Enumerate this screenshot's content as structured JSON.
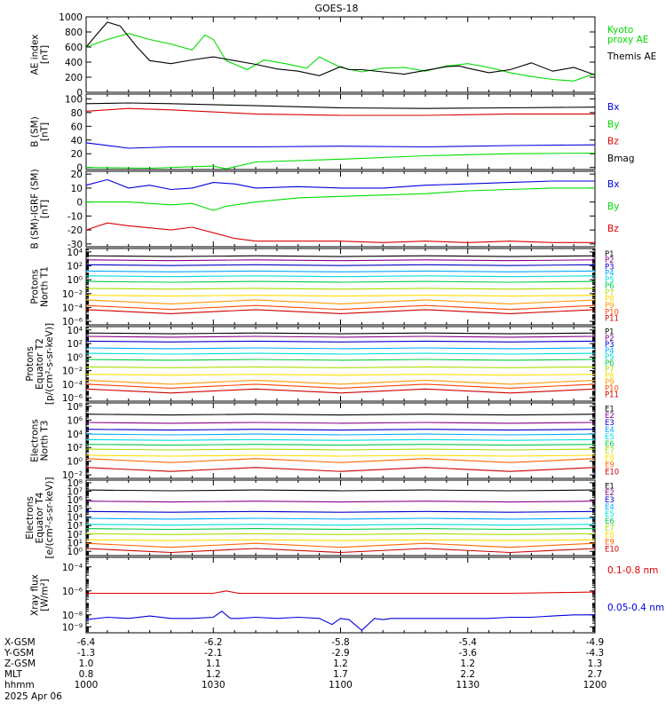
{
  "title": "GOES-18",
  "colors": {
    "black": "#000000",
    "green": "#00dd00",
    "blue": "#0000dd",
    "red": "#dd0000",
    "P1": "#000000",
    "P2": "#880088",
    "P3": "#0000cc",
    "P4": "#00aaff",
    "P5": "#00dddd",
    "P6": "#00cc44",
    "P7": "#aadd00",
    "P8": "#ffdd00",
    "P9": "#ff9900",
    "P10": "#ff4400",
    "P11": "#cc0000"
  },
  "chart_data": [
    {
      "type": "line",
      "id": "ae",
      "ylabel": [
        "AE index",
        "[nT]"
      ],
      "ylim": [
        0,
        1000
      ],
      "yticks": [
        {
          "v": 0,
          "t": "0"
        },
        {
          "v": 200,
          "t": "200"
        },
        {
          "v": 400,
          "t": "400"
        },
        {
          "v": 600,
          "t": "600"
        },
        {
          "v": 800,
          "t": "800"
        },
        {
          "v": 1000,
          "t": "1000"
        }
      ],
      "series": [
        {
          "name": "Kyoto proxy AE",
          "color": "green",
          "x": [
            0,
            5,
            10,
            15,
            20,
            25,
            28,
            30,
            33,
            38,
            42,
            47,
            52,
            55,
            60,
            65,
            70,
            75,
            80,
            85,
            90,
            95,
            100,
            105,
            110,
            115,
            120
          ],
          "y": [
            600,
            700,
            780,
            700,
            640,
            560,
            760,
            700,
            420,
            300,
            430,
            380,
            320,
            470,
            330,
            270,
            320,
            330,
            280,
            350,
            380,
            330,
            260,
            210,
            170,
            150,
            250
          ]
        },
        {
          "name": "Themis AE",
          "color": "black",
          "x": [
            0,
            3,
            5,
            8,
            12,
            15,
            20,
            25,
            30,
            35,
            40,
            45,
            50,
            55,
            60,
            62,
            65,
            70,
            75,
            80,
            85,
            88,
            90,
            95,
            100,
            105,
            110,
            115,
            118,
            120
          ],
          "y": [
            600,
            800,
            930,
            880,
            600,
            420,
            380,
            430,
            470,
            420,
            370,
            310,
            280,
            220,
            340,
            300,
            300,
            270,
            240,
            290,
            340,
            350,
            320,
            260,
            300,
            390,
            280,
            330,
            270,
            230
          ]
        }
      ],
      "legend": [
        {
          "lines": [
            "Kyoto",
            "proxy AE"
          ],
          "color": "green"
        },
        {
          "lines": [
            "Themis AE"
          ],
          "color": "black"
        }
      ]
    },
    {
      "type": "line",
      "id": "bsm",
      "ylabel": [
        "B (SM)",
        "[nT]"
      ],
      "ylim": [
        -3,
        107
      ],
      "yticks": [
        {
          "v": 0,
          "t": "0"
        },
        {
          "v": 20,
          "t": "20"
        },
        {
          "v": 40,
          "t": "40"
        },
        {
          "v": 60,
          "t": "60"
        },
        {
          "v": 80,
          "t": "80"
        },
        {
          "v": 100,
          "t": "100"
        }
      ],
      "series": [
        {
          "name": "Bmag",
          "color": "black",
          "x": [
            0,
            10,
            20,
            40,
            60,
            80,
            100,
            120
          ],
          "y": [
            93,
            94,
            93,
            90,
            87,
            86,
            87,
            88
          ]
        },
        {
          "name": "Bz",
          "color": "red",
          "x": [
            0,
            10,
            20,
            40,
            60,
            80,
            100,
            120
          ],
          "y": [
            82,
            86,
            84,
            78,
            76,
            76,
            78,
            78
          ]
        },
        {
          "name": "Bx",
          "color": "blue",
          "x": [
            0,
            10,
            20,
            40,
            60,
            80,
            100,
            120
          ],
          "y": [
            36,
            28,
            30,
            30,
            31,
            30,
            32,
            33
          ]
        },
        {
          "name": "By",
          "color": "green",
          "x": [
            0,
            15,
            30,
            33,
            40,
            60,
            80,
            100,
            120
          ],
          "y": [
            0,
            -1,
            2,
            -2,
            8,
            12,
            17,
            20,
            21
          ]
        }
      ],
      "legend": [
        {
          "lines": [
            "Bx"
          ],
          "color": "blue"
        },
        {
          "lines": [
            "By"
          ],
          "color": "green"
        },
        {
          "lines": [
            "Bz"
          ],
          "color": "red"
        },
        {
          "lines": [
            "Bmag"
          ],
          "color": "black"
        }
      ]
    },
    {
      "type": "line",
      "id": "bigrf",
      "ylabel": [
        "B (SM)-IGRF (SM)",
        "[nT]"
      ],
      "ylim": [
        -32,
        22
      ],
      "yticks": [
        {
          "v": -30,
          "t": "-30"
        },
        {
          "v": -20,
          "t": "-20"
        },
        {
          "v": -10,
          "t": "-10"
        },
        {
          "v": 0,
          "t": "0"
        },
        {
          "v": 10,
          "t": "10"
        },
        {
          "v": 20,
          "t": "20"
        }
      ],
      "series": [
        {
          "name": "Bx",
          "color": "blue",
          "x": [
            0,
            5,
            10,
            15,
            20,
            25,
            30,
            35,
            40,
            50,
            60,
            70,
            80,
            90,
            100,
            110,
            120
          ],
          "y": [
            12,
            16,
            10,
            12,
            9,
            10,
            14,
            13,
            10,
            11,
            10,
            10,
            12,
            13,
            14,
            15,
            15
          ]
        },
        {
          "name": "By",
          "color": "green",
          "x": [
            0,
            10,
            20,
            25,
            30,
            33,
            40,
            50,
            60,
            70,
            80,
            90,
            100,
            110,
            120
          ],
          "y": [
            0,
            0,
            -2,
            -1,
            -6,
            -3,
            0,
            3,
            4,
            5,
            6,
            8,
            9,
            10,
            10
          ]
        },
        {
          "name": "Bz",
          "color": "red",
          "x": [
            0,
            5,
            10,
            20,
            25,
            30,
            35,
            40,
            50,
            60,
            70,
            80,
            90,
            100,
            110,
            120
          ],
          "y": [
            -20,
            -15,
            -17,
            -20,
            -18,
            -22,
            -26,
            -28,
            -28,
            -28,
            -29,
            -28,
            -29,
            -28,
            -29,
            -29
          ]
        }
      ],
      "legend": [
        {
          "lines": [
            "Bx"
          ],
          "color": "blue"
        },
        {
          "lines": [
            "By"
          ],
          "color": "green"
        },
        {
          "lines": [
            "Bz"
          ],
          "color": "red"
        }
      ]
    },
    {
      "type": "line",
      "id": "protons-t1",
      "log": true,
      "ylabel": [
        "Protons",
        "North T1"
      ],
      "ylim": [
        -6.5,
        4.5
      ],
      "yticks": [
        {
          "v": -6,
          "t": "10⁻⁶"
        },
        {
          "v": -4,
          "t": "10⁻⁴"
        },
        {
          "v": -2,
          "t": "10⁻²"
        },
        {
          "v": 0,
          "t": "10⁰"
        },
        {
          "v": 2,
          "t": "10²"
        },
        {
          "v": 4,
          "t": "10⁴"
        }
      ],
      "levels": [
        3.4,
        2.8,
        2.1,
        1.2,
        0.5,
        -0.3,
        -1.3,
        -2.3,
        -3.2,
        -4.0,
        -4.6
      ],
      "names": [
        "P1",
        "P2",
        "P3",
        "P4",
        "P5",
        "P6",
        "P7",
        "P8",
        "P9",
        "P10",
        "P11"
      ]
    },
    {
      "type": "line",
      "id": "protons-t2",
      "log": true,
      "ylabel": [
        "Protons",
        "Equator T2",
        "[p/(cm²-s-sr-keV)]"
      ],
      "ylim": [
        -6.5,
        4.5
      ],
      "yticks": [
        {
          "v": -6,
          "t": "10⁻⁶"
        },
        {
          "v": -4,
          "t": "10⁻⁴"
        },
        {
          "v": -2,
          "t": "10⁻²"
        },
        {
          "v": 0,
          "t": "10⁰"
        },
        {
          "v": 2,
          "t": "10²"
        },
        {
          "v": 4,
          "t": "10⁴"
        }
      ],
      "levels": [
        3.5,
        3.0,
        2.3,
        1.3,
        0.5,
        -0.4,
        -1.5,
        -2.6,
        -3.7,
        -4.3,
        -5.0
      ],
      "names": [
        "P1",
        "P2",
        "P3",
        "P4",
        "P5",
        "P6",
        "P7",
        "P8",
        "P9",
        "P10",
        "P11"
      ]
    },
    {
      "type": "line",
      "id": "electrons-t3",
      "log": true,
      "ylabel": [
        "Electrons",
        "North T3"
      ],
      "ylim": [
        -2.5,
        8.5
      ],
      "yticks": [
        {
          "v": -2,
          "t": "10⁻²"
        },
        {
          "v": 0,
          "t": "10⁰"
        },
        {
          "v": 2,
          "t": "10²"
        },
        {
          "v": 4,
          "t": "10⁴"
        },
        {
          "v": 6,
          "t": "10⁶"
        },
        {
          "v": 8,
          "t": "10⁸"
        }
      ],
      "levels": [
        6.8,
        5.6,
        4.6,
        3.9,
        3.1,
        2.4,
        1.7,
        0.8,
        0.1,
        -1.2
      ],
      "names": [
        "E1",
        "E2",
        "E3",
        "E4",
        "E5",
        "E6",
        "E7",
        "E8",
        "E9",
        "E10"
      ]
    },
    {
      "type": "line",
      "id": "electrons-t4",
      "log": true,
      "ylabel": [
        "Electrons",
        "Equator T4",
        "[e/(cm²-s-sr-keV)]"
      ],
      "ylim": [
        -0.5,
        8.3
      ],
      "yticks": [
        {
          "v": 0,
          "t": "10⁰"
        },
        {
          "v": 1,
          "t": "10¹"
        },
        {
          "v": 2,
          "t": "10²"
        },
        {
          "v": 3,
          "t": "10³"
        },
        {
          "v": 4,
          "t": "10⁴"
        },
        {
          "v": 5,
          "t": "10⁵"
        },
        {
          "v": 6,
          "t": "10⁶"
        },
        {
          "v": 7,
          "t": "10⁷"
        },
        {
          "v": 8,
          "t": "10⁸"
        }
      ],
      "levels": [
        7.1,
        5.8,
        4.6,
        3.8,
        3.1,
        2.6,
        2.0,
        1.3,
        0.7,
        0.1
      ],
      "names": [
        "E1",
        "E2",
        "E3",
        "E4",
        "E5",
        "E6",
        "E7",
        "E8",
        "E9",
        "E10"
      ]
    },
    {
      "type": "line",
      "id": "xray",
      "log": true,
      "ylabel": [
        "Xray flux",
        "[W/m²]"
      ],
      "ylim": [
        -9.5,
        -3.2
      ],
      "yticks": [
        {
          "v": -9,
          "t": "10⁻⁹"
        },
        {
          "v": -8,
          "t": "10⁻⁸"
        },
        {
          "v": -6,
          "t": "10⁻⁶"
        },
        {
          "v": -4,
          "t": "10⁻⁴"
        }
      ],
      "series": [
        {
          "name": "0.1-0.8 nm",
          "color": "red",
          "x": [
            0,
            30,
            33,
            36,
            40,
            60,
            80,
            100,
            120
          ],
          "y": [
            -6.2,
            -6.2,
            -6.0,
            -6.2,
            -6.2,
            -6.2,
            -6.2,
            -6.2,
            -6.1
          ]
        },
        {
          "name": "0.05-0.4 nm",
          "color": "blue",
          "x": [
            0,
            5,
            10,
            15,
            20,
            25,
            30,
            32,
            34,
            36,
            40,
            45,
            50,
            55,
            58,
            60,
            62,
            65,
            68,
            70,
            72,
            75,
            80,
            85,
            90,
            95,
            100,
            105,
            110,
            115,
            120
          ],
          "y": [
            -8.4,
            -8.2,
            -8.3,
            -8.1,
            -8.3,
            -8.3,
            -8.2,
            -7.7,
            -8.3,
            -8.3,
            -8.2,
            -8.3,
            -8.2,
            -8.3,
            -8.8,
            -8.3,
            -8.4,
            -9.3,
            -8.3,
            -8.4,
            -8.3,
            -8.3,
            -8.3,
            -8.3,
            -8.3,
            -8.3,
            -8.2,
            -8.2,
            -8.1,
            -8.0,
            -8.0
          ]
        }
      ],
      "legend": [
        {
          "lines": [
            "0.1-0.8 nm"
          ],
          "color": "red"
        },
        {
          "lines": [
            "0.05-0.4 nm"
          ],
          "color": "blue"
        }
      ]
    }
  ],
  "x_axis": {
    "labels": [
      "X-GSM",
      "Y-GSM",
      "Z-GSM",
      "MLT",
      "hhmm",
      "2025 Apr 06"
    ],
    "ticks": [
      {
        "x": 0,
        "vals": [
          "-6.4",
          "-1.3",
          "1.0",
          "0.8",
          "1000"
        ]
      },
      {
        "x": 30,
        "vals": [
          "-6.2",
          "-2.1",
          "1.1",
          "1.2",
          "1030"
        ]
      },
      {
        "x": 60,
        "vals": [
          "-5.8",
          "-2.9",
          "1.2",
          "1.7",
          "1100"
        ]
      },
      {
        "x": 90,
        "vals": [
          "-5.4",
          "-3.6",
          "1.2",
          "2.2",
          "1130"
        ]
      },
      {
        "x": 120,
        "vals": [
          "-4.9",
          "-4.3",
          "1.3",
          "2.7",
          "1200"
        ]
      }
    ]
  }
}
